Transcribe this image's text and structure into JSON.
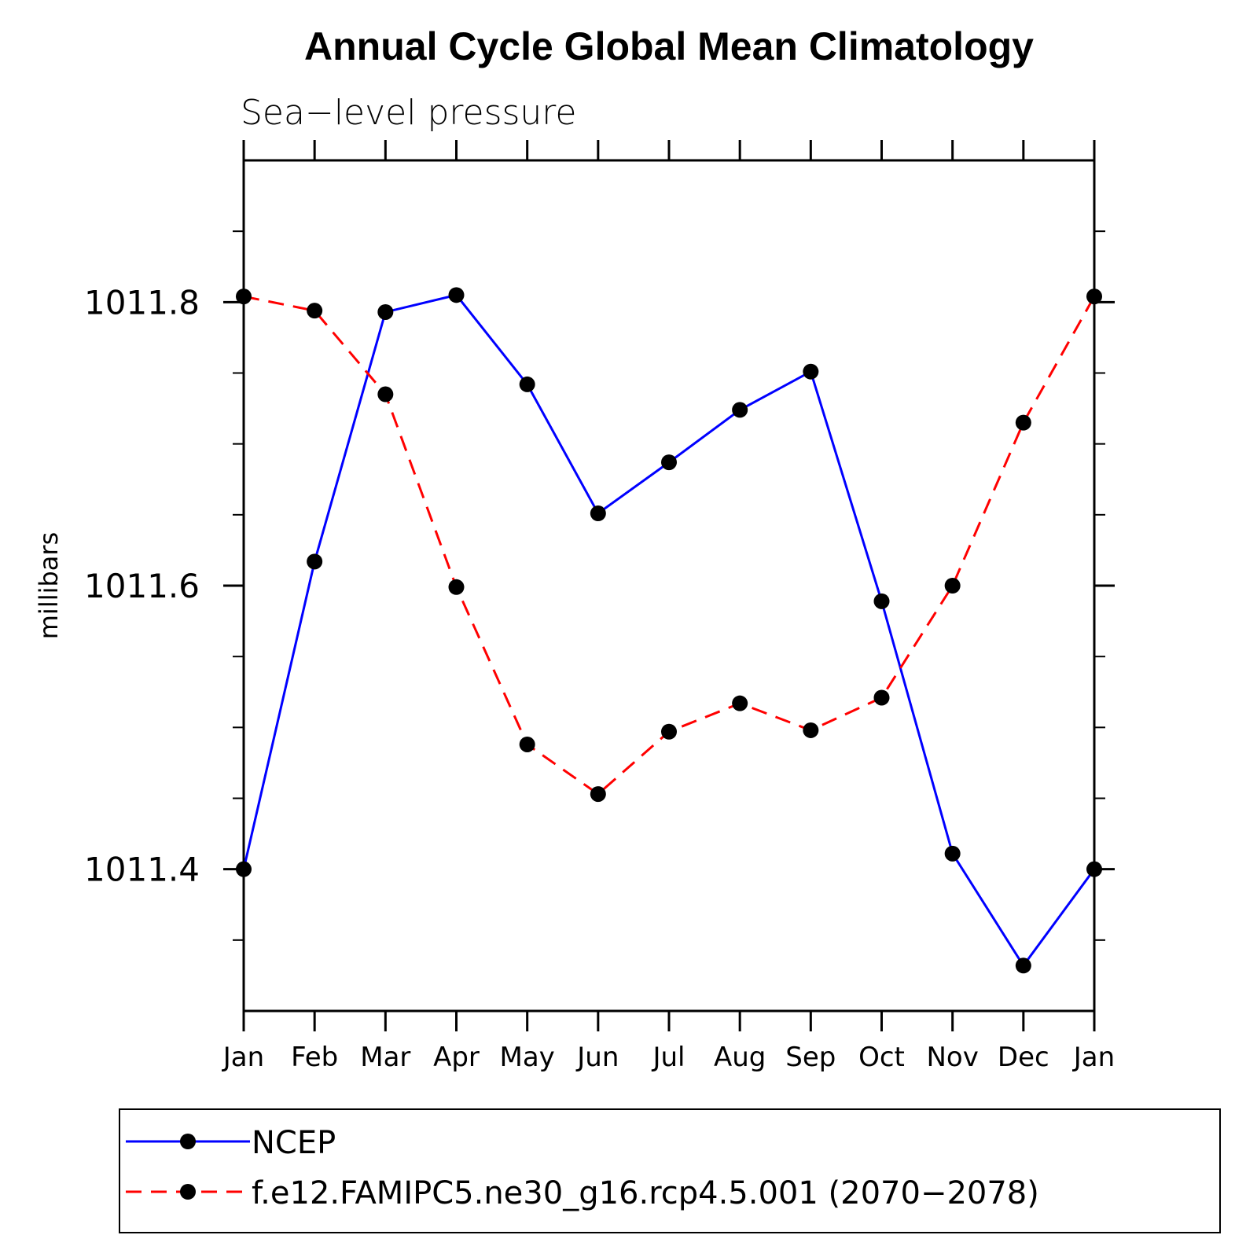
{
  "chart_data": {
    "type": "line",
    "title": "Annual Cycle Global Mean Climatology",
    "subtitle": "Sea−level pressure",
    "xlabel": "",
    "ylabel": "millibars",
    "categories": [
      "Jan",
      "Feb",
      "Mar",
      "Apr",
      "May",
      "Jun",
      "Jul",
      "Aug",
      "Sep",
      "Oct",
      "Nov",
      "Dec",
      "Jan"
    ],
    "ylim": [
      1011.3,
      1011.9
    ],
    "yticks": [
      1011.4,
      1011.6,
      1011.8
    ],
    "ytick_labels": [
      "1011.4",
      "1011.6",
      "1011.8"
    ],
    "yminor_step": 0.05,
    "series": [
      {
        "name": "NCEP",
        "color": "#0000ff",
        "style": "solid",
        "values": [
          1011.4,
          1011.617,
          1011.793,
          1011.805,
          1011.742,
          1011.651,
          1011.687,
          1011.724,
          1011.751,
          1011.589,
          1011.411,
          1011.332,
          1011.4
        ]
      },
      {
        "name": "f.e12.FAMIPC5.ne30_g16.rcp4.5.001 (2070−2078)",
        "color": "#ff0000",
        "style": "dashed",
        "values": [
          1011.804,
          1011.794,
          1011.735,
          1011.599,
          1011.488,
          1011.453,
          1011.497,
          1011.517,
          1011.498,
          1011.521,
          1011.6,
          1011.715,
          1011.804
        ]
      }
    ],
    "legend": {
      "position": "bottom",
      "entries": [
        "NCEP",
        "f.e12.FAMIPC5.ne30_g16.rcp4.5.001 (2070−2078)"
      ]
    }
  }
}
